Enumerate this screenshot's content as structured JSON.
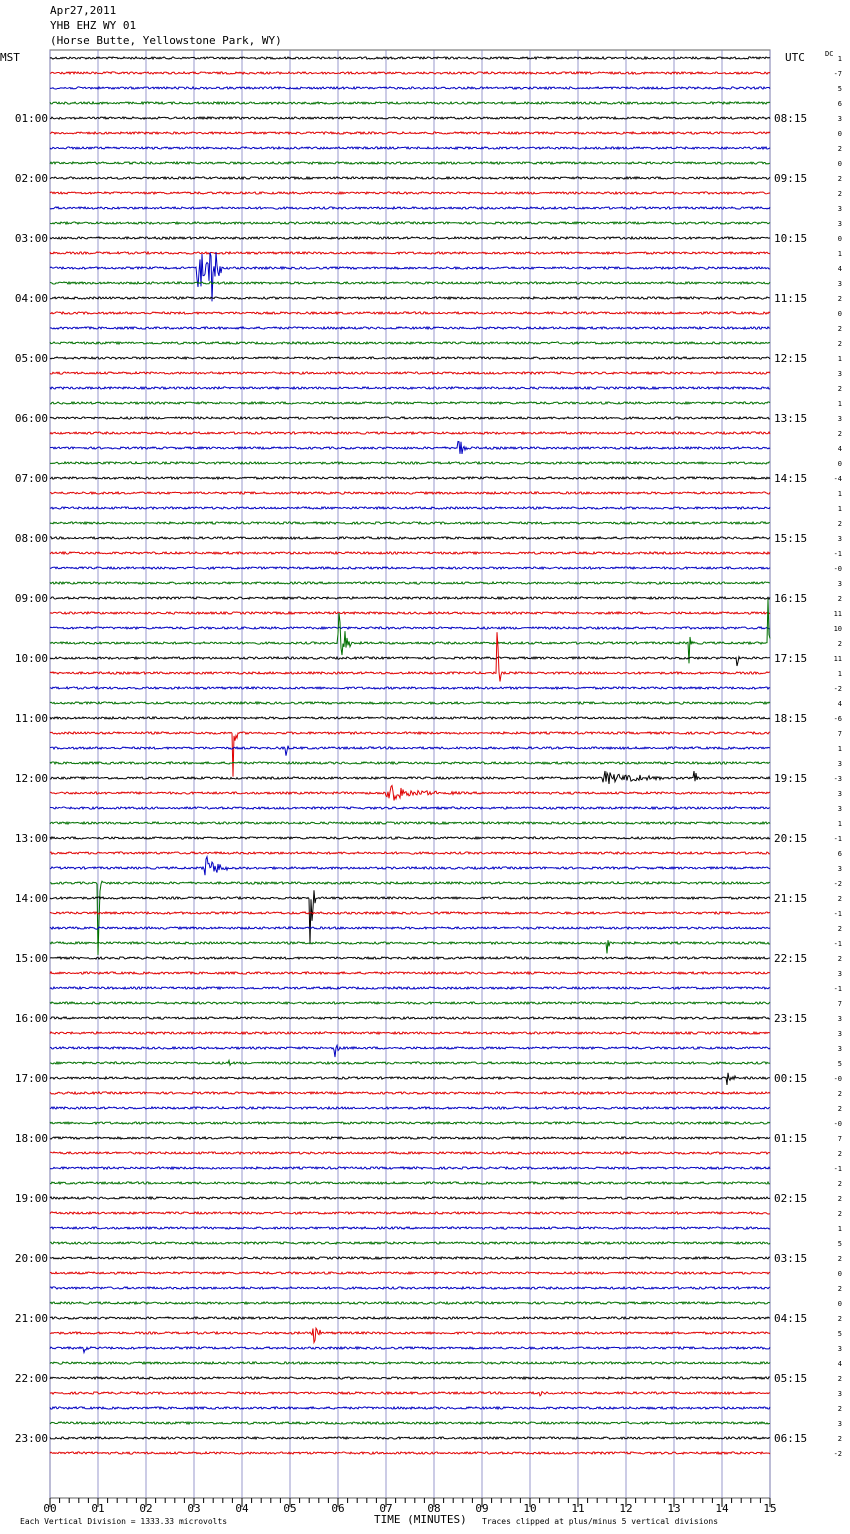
{
  "header": {
    "date": "Apr27,2011",
    "station": "YHB EHZ WY 01",
    "location": "(Horse Butte, Yellowstone Park, WY)"
  },
  "left_axis_label": "MST",
  "right_axis_label": "UTC",
  "dc_label": "DC",
  "footer": {
    "scale": "Each Vertical Division = 1333.33 microvolts",
    "xlabel": "TIME (MINUTES)",
    "clip_note": "Traces clipped at plus/minus 5 vertical divisions"
  },
  "colors": {
    "trace": [
      "#000000",
      "#e00000",
      "#0000c0",
      "#007000"
    ],
    "grid": "#8080c0"
  },
  "chart_data": {
    "type": "line",
    "title": "YHB EHZ WY 01",
    "xlabel": "TIME (MINUTES)",
    "ylabel": "",
    "xlim": [
      0,
      15
    ],
    "x_ticks": [
      "00",
      "01",
      "02",
      "03",
      "04",
      "05",
      "06",
      "07",
      "08",
      "09",
      "10",
      "11",
      "12",
      "13",
      "14",
      "15"
    ],
    "traces_per_hour": 4,
    "mst_hour_labels": [
      "",
      "01:00",
      "02:00",
      "03:00",
      "04:00",
      "05:00",
      "06:00",
      "07:00",
      "08:00",
      "09:00",
      "10:00",
      "11:00",
      "12:00",
      "13:00",
      "14:00",
      "15:00",
      "16:00",
      "17:00",
      "18:00",
      "19:00",
      "20:00",
      "21:00",
      "22:00",
      "23:00"
    ],
    "utc_hour_labels": [
      "",
      "08:15",
      "09:15",
      "10:15",
      "11:15",
      "12:15",
      "13:15",
      "14:15",
      "15:15",
      "16:15",
      "17:15",
      "18:15",
      "19:15",
      "20:15",
      "21:15",
      "22:15",
      "23:15",
      "00:15",
      "01:15",
      "02:15",
      "03:15",
      "04:15",
      "05:15",
      "06:15"
    ],
    "dc_offsets": [
      "1",
      "-7",
      "5",
      "6",
      "3",
      "0",
      "2",
      "0",
      "2",
      "2",
      "3",
      "3",
      "0",
      "1",
      "4",
      "3",
      "2",
      "0",
      "2",
      "2",
      "1",
      "3",
      "2",
      "1",
      "3",
      "2",
      "4",
      "0",
      "-4",
      "1",
      "1",
      "2",
      "3",
      "-1",
      "-0",
      "3",
      "2",
      "11",
      "10",
      "2",
      "11",
      "1",
      "-2",
      "4",
      "-6",
      "7",
      "1",
      "3",
      "-3",
      "3",
      "3",
      "1",
      "-1",
      "6",
      "3",
      "-2",
      "2",
      "-1",
      "2",
      "-1",
      "2",
      "3",
      "-1",
      "7",
      "3",
      "3",
      "3",
      "5",
      "-0",
      "2",
      "2",
      "-0",
      "7",
      "2",
      "-1",
      "2",
      "2",
      "2",
      "1",
      "5",
      "2",
      "0",
      "2",
      "0",
      "2",
      "5",
      "3",
      "4",
      "2",
      "3",
      "2",
      "3",
      "2",
      "-2"
    ],
    "events": [
      {
        "trace": 14,
        "minute": 3.05,
        "amp": 5,
        "len": 0.25
      },
      {
        "trace": 14,
        "minute": 3.3,
        "amp": 5,
        "len": 0.3
      },
      {
        "trace": 26,
        "minute": 8.5,
        "amp": 1,
        "len": 0.3
      },
      {
        "trace": 39,
        "minute": 6.0,
        "amp": 4,
        "len": 0.3
      },
      {
        "trace": 39,
        "minute": 13.3,
        "amp": 2,
        "len": 0.1
      },
      {
        "trace": 39,
        "minute": 14.95,
        "amp": 5,
        "len": 0.1
      },
      {
        "trace": 40,
        "minute": 14.3,
        "amp": 1,
        "len": 0.1
      },
      {
        "trace": 41,
        "minute": 9.3,
        "amp": 5,
        "len": 0.1
      },
      {
        "trace": 45,
        "minute": 3.8,
        "amp": 5,
        "len": 0.1
      },
      {
        "trace": 46,
        "minute": 4.9,
        "amp": 1,
        "len": 0.1
      },
      {
        "trace": 48,
        "minute": 11.5,
        "amp": 0.5,
        "len": 2.0
      },
      {
        "trace": 48,
        "minute": 13.4,
        "amp": 2,
        "len": 0.1
      },
      {
        "trace": 49,
        "minute": 7.0,
        "amp": 0.7,
        "len": 1.5
      },
      {
        "trace": 54,
        "minute": 3.2,
        "amp": 1,
        "len": 0.8
      },
      {
        "trace": 55,
        "minute": 1.0,
        "amp": 5,
        "len": 0.1
      },
      {
        "trace": 56,
        "minute": 5.4,
        "amp": 5,
        "len": 0.15
      },
      {
        "trace": 59,
        "minute": 11.6,
        "amp": 1,
        "len": 0.2
      },
      {
        "trace": 66,
        "minute": 5.9,
        "amp": 1,
        "len": 0.2
      },
      {
        "trace": 67,
        "minute": 3.7,
        "amp": 1,
        "len": 0.1
      },
      {
        "trace": 68,
        "minute": 14.1,
        "amp": 0.5,
        "len": 0.3
      },
      {
        "trace": 85,
        "minute": 5.45,
        "amp": 2,
        "len": 0.2
      },
      {
        "trace": 86,
        "minute": 0.7,
        "amp": 0.5,
        "len": 0.2
      },
      {
        "trace": 89,
        "minute": 10.2,
        "amp": 0.5,
        "len": 0.1
      }
    ]
  }
}
